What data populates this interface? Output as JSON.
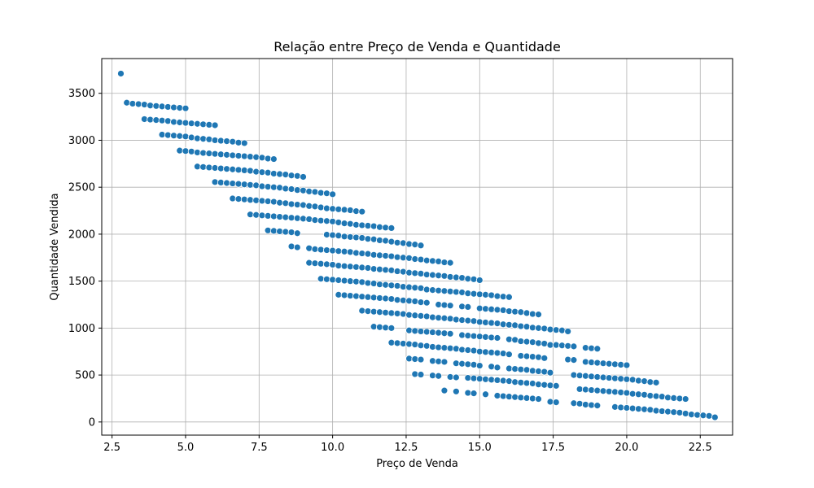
{
  "chart_data": {
    "type": "scatter",
    "title": "Relação entre Preço de Venda e Quantidade",
    "xlabel": "Preço de Venda",
    "ylabel": "Quantidade Vendida",
    "xlim": [
      2.15,
      23.6
    ],
    "ylim": [
      -140,
      3870
    ],
    "xticks": [
      2.5,
      5.0,
      7.5,
      10.0,
      12.5,
      15.0,
      17.5,
      20.0,
      22.5
    ],
    "xtick_labels": [
      "2.5",
      "5.0",
      "7.5",
      "10.0",
      "12.5",
      "15.0",
      "17.5",
      "20.0",
      "22.5"
    ],
    "yticks": [
      0,
      500,
      1000,
      1500,
      2000,
      2500,
      3000,
      3500
    ],
    "ytick_labels": [
      "0",
      "500",
      "1000",
      "1500",
      "2000",
      "2500",
      "3000",
      "3500"
    ],
    "grid": true,
    "marker_color": "#1f77b4",
    "series": [
      {
        "x": [
          2.8
        ],
        "y": [
          3710
        ]
      },
      {
        "x": [
          3.0,
          3.2,
          3.4,
          3.6,
          3.8,
          4.0,
          4.2,
          4.4,
          4.6,
          4.8,
          5.0
        ],
        "y": [
          3400,
          3390,
          3385,
          3380,
          3370,
          3365,
          3360,
          3355,
          3350,
          3345,
          3340
        ]
      },
      {
        "x": [
          3.6,
          3.8,
          4.0,
          4.2,
          4.4,
          4.6,
          4.8,
          5.0,
          5.2,
          5.4,
          5.6,
          5.8,
          6.0
        ],
        "y": [
          3225,
          3220,
          3215,
          3210,
          3205,
          3195,
          3190,
          3185,
          3180,
          3175,
          3170,
          3165,
          3160
        ]
      },
      {
        "x": [
          4.2,
          4.4,
          4.6,
          4.8,
          5.0,
          5.2,
          5.4,
          5.6,
          5.8,
          6.0,
          6.2,
          6.4,
          6.6,
          6.8,
          7.0
        ],
        "y": [
          3060,
          3055,
          3050,
          3045,
          3040,
          3030,
          3020,
          3015,
          3010,
          3000,
          2995,
          2990,
          2985,
          2975,
          2970
        ]
      },
      {
        "x": [
          4.8,
          5.0,
          5.2,
          5.4,
          5.6,
          5.8,
          6.0,
          6.2,
          6.4,
          6.6,
          6.8,
          7.0,
          7.2,
          7.4,
          7.6,
          7.8,
          8.0
        ],
        "y": [
          2890,
          2885,
          2880,
          2870,
          2865,
          2860,
          2855,
          2850,
          2845,
          2840,
          2835,
          2830,
          2825,
          2820,
          2815,
          2805,
          2800
        ]
      },
      {
        "x": [
          5.4,
          5.6,
          5.8,
          6.0,
          6.2,
          6.4,
          6.6,
          6.8,
          7.0,
          7.2,
          7.4,
          7.6,
          7.8,
          8.0,
          8.2,
          8.4,
          8.6,
          8.8,
          9.0
        ],
        "y": [
          2720,
          2715,
          2710,
          2705,
          2700,
          2695,
          2690,
          2685,
          2680,
          2675,
          2665,
          2660,
          2655,
          2645,
          2640,
          2635,
          2625,
          2620,
          2610
        ]
      },
      {
        "x": [
          6.0,
          6.2,
          6.4,
          6.6,
          6.8,
          7.0,
          7.2,
          7.4,
          7.6,
          7.8,
          8.0,
          8.2,
          8.4,
          8.6,
          8.8,
          9.0,
          9.2,
          9.4,
          9.6,
          9.8,
          10.0
        ],
        "y": [
          2555,
          2550,
          2545,
          2540,
          2535,
          2530,
          2525,
          2520,
          2510,
          2505,
          2500,
          2495,
          2485,
          2480,
          2470,
          2465,
          2455,
          2450,
          2440,
          2435,
          2425
        ]
      },
      {
        "x": [
          6.6,
          6.8,
          7.0,
          7.2,
          7.4,
          7.6,
          7.8,
          8.0,
          8.2,
          8.4,
          8.6,
          8.8,
          9.0,
          9.2,
          9.4,
          9.6,
          9.8,
          10.0,
          10.2,
          10.4,
          10.6,
          10.8,
          11.0
        ],
        "y": [
          2380,
          2375,
          2370,
          2365,
          2360,
          2355,
          2350,
          2345,
          2335,
          2330,
          2320,
          2315,
          2310,
          2300,
          2295,
          2285,
          2275,
          2270,
          2265,
          2260,
          2255,
          2245,
          2240
        ]
      },
      {
        "x": [
          7.2,
          7.4,
          7.6,
          7.8,
          8.0,
          8.2,
          8.4,
          8.6,
          8.8,
          9.0,
          9.2,
          9.4,
          9.6,
          9.8,
          10.0,
          10.2,
          10.4,
          10.6,
          10.8,
          11.0,
          11.2,
          11.4,
          11.6,
          11.8,
          12.0
        ],
        "y": [
          2210,
          2205,
          2200,
          2195,
          2190,
          2185,
          2180,
          2175,
          2170,
          2165,
          2160,
          2150,
          2145,
          2140,
          2135,
          2125,
          2115,
          2110,
          2100,
          2095,
          2090,
          2085,
          2075,
          2070,
          2065
        ]
      },
      {
        "x": [
          7.8,
          8.0,
          8.2,
          8.4,
          8.6,
          8.8,
          9.8,
          10.0,
          10.2,
          10.4,
          10.6,
          10.8,
          11.0,
          11.2,
          11.4,
          11.6,
          11.8,
          12.0,
          12.2,
          12.4,
          12.6,
          12.8,
          13.0
        ],
        "y": [
          2040,
          2035,
          2030,
          2025,
          2020,
          2010,
          1995,
          1990,
          1985,
          1975,
          1970,
          1965,
          1960,
          1950,
          1945,
          1935,
          1930,
          1920,
          1910,
          1905,
          1895,
          1890,
          1880
        ]
      },
      {
        "x": [
          8.6,
          8.8,
          9.2,
          9.4,
          9.6,
          9.8,
          10.0,
          10.2,
          10.4,
          10.6,
          10.8,
          11.0,
          11.2,
          11.4,
          11.6,
          11.8,
          12.0,
          12.2,
          12.4,
          12.6,
          12.8,
          13.0,
          13.2,
          13.4,
          13.6,
          13.8,
          14.0
        ],
        "y": [
          1870,
          1860,
          1850,
          1840,
          1835,
          1830,
          1825,
          1820,
          1815,
          1810,
          1800,
          1795,
          1790,
          1780,
          1775,
          1770,
          1765,
          1755,
          1750,
          1745,
          1735,
          1730,
          1720,
          1715,
          1710,
          1700,
          1695
        ]
      },
      {
        "x": [
          9.2,
          9.4,
          9.6,
          9.8,
          10.0,
          10.2,
          10.4,
          10.6,
          10.8,
          11.0,
          11.2,
          11.4,
          11.6,
          11.8,
          12.0,
          12.2,
          12.4,
          12.6,
          12.8,
          13.0,
          13.2,
          13.4,
          13.6,
          13.8,
          14.0,
          14.2,
          14.4,
          14.6,
          14.8,
          15.0
        ],
        "y": [
          1695,
          1690,
          1685,
          1680,
          1675,
          1665,
          1660,
          1655,
          1650,
          1645,
          1640,
          1630,
          1625,
          1620,
          1615,
          1605,
          1600,
          1590,
          1585,
          1580,
          1570,
          1565,
          1560,
          1555,
          1545,
          1540,
          1535,
          1525,
          1520,
          1510
        ]
      },
      {
        "x": [
          9.6,
          9.8,
          10.0,
          10.2,
          10.4,
          10.6,
          10.8,
          11.0,
          11.2,
          11.4,
          11.6,
          11.8,
          12.0,
          12.2,
          12.4,
          12.6,
          12.8,
          13.0,
          13.2,
          13.4,
          13.6,
          13.8,
          14.0,
          14.2,
          14.4,
          14.6,
          14.8,
          15.0,
          15.2,
          15.4,
          15.6,
          15.8,
          16.0
        ],
        "y": [
          1525,
          1520,
          1515,
          1510,
          1505,
          1500,
          1495,
          1490,
          1480,
          1475,
          1465,
          1460,
          1455,
          1450,
          1440,
          1435,
          1430,
          1425,
          1410,
          1405,
          1400,
          1395,
          1390,
          1385,
          1380,
          1370,
          1365,
          1360,
          1355,
          1350,
          1340,
          1335,
          1330
        ]
      },
      {
        "x": [
          10.2,
          10.4,
          10.6,
          10.8,
          11.0,
          11.2,
          11.4,
          11.6,
          11.8,
          12.0,
          12.2,
          12.4,
          12.6,
          12.8,
          13.0,
          13.2,
          13.6,
          13.8,
          14.0,
          14.4,
          14.6,
          15.0,
          15.2,
          15.4,
          15.6,
          15.8,
          16.0,
          16.2,
          16.4,
          16.6,
          16.8,
          17.0
        ],
        "y": [
          1355,
          1350,
          1345,
          1340,
          1335,
          1330,
          1325,
          1320,
          1315,
          1310,
          1300,
          1295,
          1290,
          1285,
          1275,
          1270,
          1250,
          1245,
          1240,
          1230,
          1225,
          1210,
          1205,
          1200,
          1195,
          1190,
          1180,
          1175,
          1170,
          1160,
          1150,
          1145
        ]
      },
      {
        "x": [
          11.0,
          11.2,
          11.4,
          11.6,
          11.8,
          12.0,
          12.2,
          12.4,
          12.6,
          12.8,
          13.0,
          13.2,
          13.4,
          13.6,
          13.8,
          14.0,
          14.2,
          14.4,
          14.6,
          14.8,
          15.0,
          15.2,
          15.4,
          15.6,
          15.8,
          16.0,
          16.2,
          16.4,
          16.6,
          16.8,
          17.0,
          17.2,
          17.4,
          17.6,
          17.8,
          18.0
        ],
        "y": [
          1185,
          1180,
          1175,
          1170,
          1165,
          1160,
          1155,
          1150,
          1140,
          1135,
          1130,
          1125,
          1115,
          1110,
          1105,
          1100,
          1090,
          1085,
          1080,
          1075,
          1065,
          1060,
          1055,
          1050,
          1040,
          1035,
          1030,
          1020,
          1015,
          1005,
          1000,
          995,
          985,
          980,
          975,
          965
        ]
      },
      {
        "x": [
          11.4,
          11.6,
          11.8,
          12.0,
          12.6,
          12.8,
          13.0,
          13.2,
          13.4,
          13.6,
          13.8,
          14.0,
          14.4,
          14.6,
          14.8,
          15.0,
          15.2,
          15.4,
          15.6,
          16.0,
          16.2,
          16.4,
          16.6,
          16.8,
          17.0,
          17.2,
          17.4,
          17.6,
          17.8,
          18.0
        ],
        "y": [
          1015,
          1010,
          1005,
          1000,
          975,
          970,
          965,
          960,
          955,
          950,
          945,
          940,
          925,
          920,
          915,
          910,
          905,
          900,
          895,
          880,
          875,
          860,
          855,
          850,
          840,
          835,
          820,
          815,
          810,
          805
        ]
      },
      {
        "x": [
          12.0,
          12.2,
          12.4,
          12.6,
          12.8,
          13.0,
          13.2,
          13.4,
          13.6,
          13.8,
          14.0,
          14.2,
          14.4,
          14.6,
          14.8,
          15.0,
          15.2,
          15.4,
          15.6,
          15.8,
          16.0,
          16.4,
          16.6,
          16.8,
          17.0,
          17.2,
          17.6,
          17.8,
          18.0,
          18.2,
          18.6,
          18.8,
          19.0
        ],
        "y": [
          845,
          840,
          835,
          830,
          825,
          815,
          810,
          800,
          795,
          790,
          785,
          780,
          770,
          765,
          760,
          750,
          745,
          740,
          735,
          730,
          720,
          705,
          700,
          695,
          690,
          680,
          820,
          815,
          810,
          805,
          790,
          785,
          780
        ]
      },
      {
        "x": [
          12.6,
          12.8,
          13.0,
          13.4,
          13.6,
          13.8,
          14.2,
          14.4,
          14.6,
          14.8,
          15.0,
          15.4,
          15.6,
          16.0,
          16.2,
          16.4,
          16.6,
          16.8,
          17.0,
          17.2,
          17.4,
          18.0,
          18.2,
          18.6,
          18.8,
          19.0,
          19.2,
          19.4,
          19.6,
          19.8,
          20.0
        ],
        "y": [
          675,
          670,
          665,
          650,
          645,
          640,
          625,
          620,
          615,
          610,
          600,
          590,
          580,
          570,
          565,
          560,
          555,
          545,
          540,
          535,
          525,
          665,
          660,
          640,
          635,
          630,
          625,
          620,
          615,
          610,
          605
        ]
      },
      {
        "x": [
          12.8,
          13.0,
          13.4,
          13.6,
          14.0,
          14.2,
          14.6,
          14.8,
          15.0,
          15.2,
          15.4,
          15.6,
          15.8,
          16.0,
          16.2,
          16.4,
          16.6,
          16.8,
          17.0,
          17.2,
          17.4,
          17.6,
          18.2,
          18.4,
          18.6,
          18.8,
          19.0,
          19.2,
          19.4,
          19.6,
          19.8,
          20.0,
          20.2,
          20.4,
          20.6,
          20.8,
          21.0
        ],
        "y": [
          510,
          505,
          495,
          490,
          480,
          475,
          470,
          465,
          460,
          455,
          450,
          445,
          440,
          435,
          425,
          420,
          415,
          410,
          400,
          395,
          390,
          385,
          500,
          495,
          490,
          485,
          480,
          475,
          470,
          465,
          460,
          455,
          450,
          440,
          435,
          425,
          420
        ]
      },
      {
        "x": [
          13.8,
          14.2,
          14.6,
          14.8,
          15.2,
          15.6,
          15.8,
          16.0,
          16.2,
          16.4,
          16.6,
          16.8,
          17.0,
          17.4,
          17.6,
          18.4,
          18.6,
          18.8,
          19.0,
          19.2,
          19.4,
          19.6,
          19.8,
          20.0,
          20.2,
          20.4,
          20.6,
          20.8,
          21.0,
          21.2,
          21.4,
          21.6,
          21.8,
          22.0
        ],
        "y": [
          335,
          325,
          310,
          305,
          295,
          280,
          275,
          270,
          265,
          260,
          255,
          250,
          245,
          215,
          210,
          350,
          345,
          340,
          335,
          330,
          325,
          320,
          315,
          310,
          300,
          295,
          290,
          280,
          275,
          270,
          260,
          255,
          250,
          245
        ]
      },
      {
        "x": [
          18.2,
          18.4,
          18.6,
          18.8,
          19.0,
          19.6,
          19.8,
          20.0,
          20.2,
          20.4,
          20.6,
          20.8,
          21.0,
          21.2,
          21.4,
          21.6,
          21.8,
          22.0,
          22.2,
          22.4,
          22.6,
          22.8,
          23.0
        ],
        "y": [
          200,
          195,
          185,
          180,
          175,
          160,
          155,
          150,
          145,
          140,
          135,
          130,
          120,
          115,
          110,
          105,
          100,
          90,
          80,
          75,
          70,
          65,
          50
        ]
      }
    ]
  }
}
